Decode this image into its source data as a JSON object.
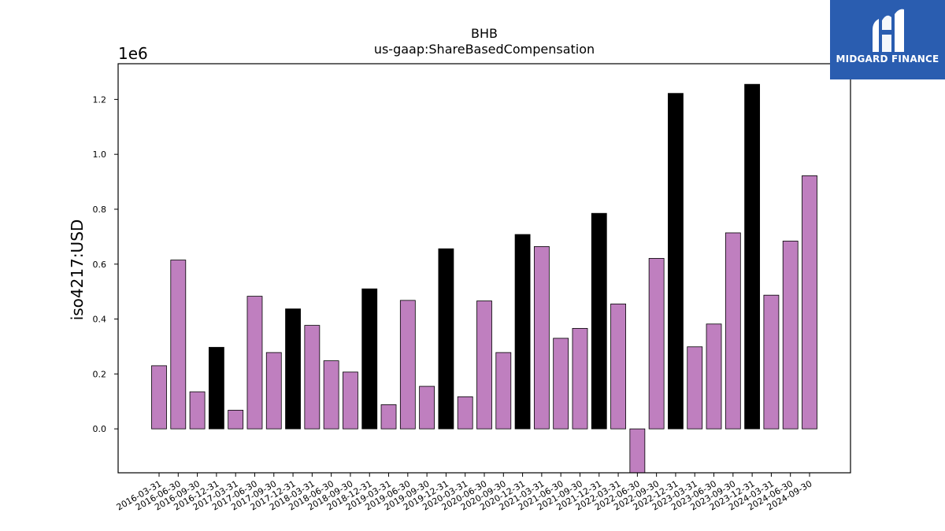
{
  "chart_data": {
    "type": "bar",
    "title": "BHB",
    "subtitle": "us-gaap:ShareBasedCompensation",
    "ylabel": "iso4217:USD",
    "y_offset_label": "1e6",
    "ylim": [
      -160000,
      1330000
    ],
    "yticks": [
      0.0,
      0.2,
      0.4,
      0.6,
      0.8,
      1.0,
      1.2
    ],
    "ytick_labels": [
      "0.0",
      "0.2",
      "0.4",
      "0.6",
      "0.8",
      "1.0",
      "1.2"
    ],
    "categories": [
      "2016-03-31",
      "2016-06-30",
      "2016-09-30",
      "2016-12-31",
      "2017-03-31",
      "2017-06-30",
      "2017-09-30",
      "2017-12-31",
      "2018-03-31",
      "2018-06-30",
      "2018-09-30",
      "2018-12-31",
      "2019-03-31",
      "2019-06-30",
      "2019-09-30",
      "2019-12-31",
      "2020-03-31",
      "2020-06-30",
      "2020-09-30",
      "2020-12-31",
      "2021-03-31",
      "2021-06-30",
      "2021-09-30",
      "2021-12-31",
      "2022-03-31",
      "2022-06-30",
      "2022-09-30",
      "2022-12-31",
      "2023-03-31",
      "2023-06-30",
      "2023-09-30",
      "2023-12-31",
      "2024-03-31",
      "2024-06-30",
      "2024-09-30"
    ],
    "values": [
      230000,
      615000,
      135000,
      297000,
      68000,
      483000,
      278000,
      437000,
      377000,
      248000,
      207000,
      510000,
      88000,
      468000,
      155000,
      656000,
      117000,
      466000,
      278000,
      708000,
      664000,
      330000,
      366000,
      785000,
      455000,
      -160000,
      621000,
      1222000,
      299000,
      382000,
      714000,
      1255000,
      487000,
      684000,
      922000
    ],
    "colors": {
      "quarter": "#bf7fbf",
      "year_end": "#000000",
      "edge": "#000000"
    }
  },
  "logo": {
    "name": "MIDGARD FINANCE",
    "bg": "#2a5db0"
  }
}
